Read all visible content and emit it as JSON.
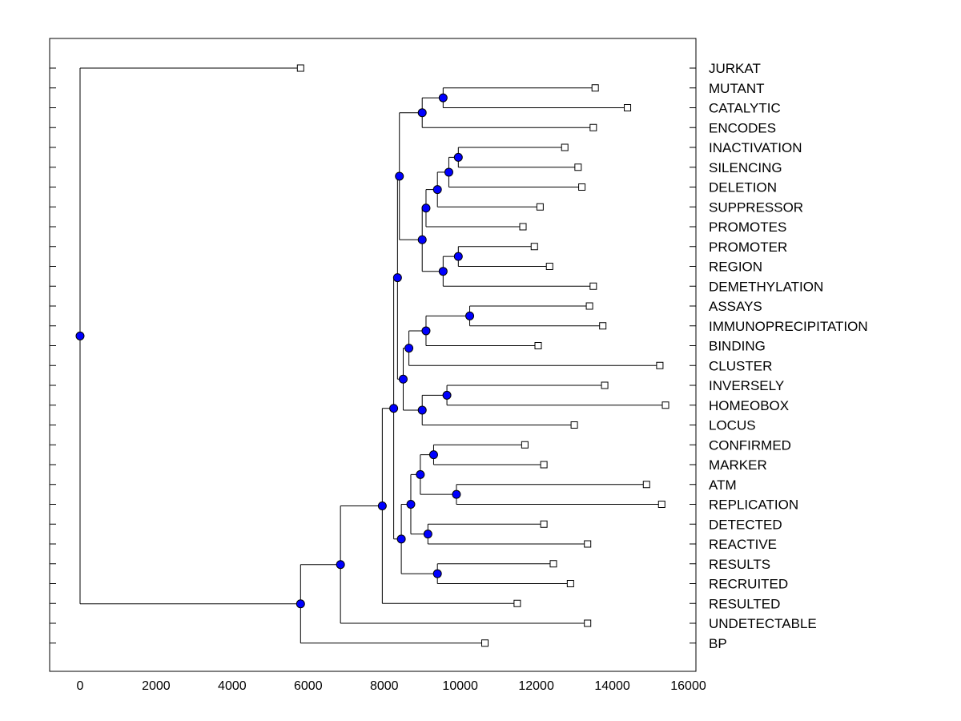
{
  "chart_data": {
    "type": "dendrogram",
    "title": "",
    "xlabel": "",
    "ylabel": "",
    "xlim": [
      -800,
      16200
    ],
    "x_ticks": [
      0,
      2000,
      4000,
      6000,
      8000,
      10000,
      12000,
      14000,
      16000
    ],
    "x_tick_labels": [
      "0",
      "2000",
      "4000",
      "6000",
      "8000",
      "10000",
      "12000",
      "14000",
      "16000"
    ],
    "leaves": [
      {
        "label": "JURKAT",
        "value": 5800
      },
      {
        "label": "MUTANT",
        "value": 13550
      },
      {
        "label": "CATALYTIC",
        "value": 14400
      },
      {
        "label": "ENCODES",
        "value": 13500
      },
      {
        "label": "INACTIVATION",
        "value": 12750
      },
      {
        "label": "SILENCING",
        "value": 13100
      },
      {
        "label": "DELETION",
        "value": 13200
      },
      {
        "label": "SUPPRESSOR",
        "value": 12100
      },
      {
        "label": "PROMOTES",
        "value": 11650
      },
      {
        "label": "PROMOTER",
        "value": 11950
      },
      {
        "label": "REGION",
        "value": 12350
      },
      {
        "label": "DEMETHYLATION",
        "value": 13500
      },
      {
        "label": "ASSAYS",
        "value": 13400
      },
      {
        "label": "IMMUNOPRECIPITATION",
        "value": 13750
      },
      {
        "label": "BINDING",
        "value": 12050
      },
      {
        "label": "CLUSTER",
        "value": 15250
      },
      {
        "label": "INVERSELY",
        "value": 13800
      },
      {
        "label": "HOMEOBOX",
        "value": 15400
      },
      {
        "label": "LOCUS",
        "value": 13000
      },
      {
        "label": "CONFIRMED",
        "value": 11700
      },
      {
        "label": "MARKER",
        "value": 12200
      },
      {
        "label": "ATM",
        "value": 14900
      },
      {
        "label": "REPLICATION",
        "value": 15300
      },
      {
        "label": "DETECTED",
        "value": 12200
      },
      {
        "label": "REACTIVE",
        "value": 13350
      },
      {
        "label": "RESULTS",
        "value": 12450
      },
      {
        "label": "RECRUITED",
        "value": 12900
      },
      {
        "label": "RESULTED",
        "value": 11500
      },
      {
        "label": "UNDETECTABLE",
        "value": 13350
      },
      {
        "label": "BP",
        "value": 10650
      }
    ],
    "nodes": [
      {
        "id": "n1",
        "value": 9550,
        "children": [
          "L1",
          "L2"
        ]
      },
      {
        "id": "n2",
        "value": 9000,
        "children": [
          "n1",
          "L3"
        ]
      },
      {
        "id": "n3",
        "value": 9950,
        "children": [
          "L4",
          "L5"
        ]
      },
      {
        "id": "n4",
        "value": 9700,
        "children": [
          "n3",
          "L6"
        ]
      },
      {
        "id": "n5",
        "value": 9400,
        "children": [
          "n4",
          "L7"
        ]
      },
      {
        "id": "n6",
        "value": 9100,
        "children": [
          "n5",
          "L8"
        ]
      },
      {
        "id": "n7",
        "value": 9950,
        "children": [
          "L9",
          "L10"
        ]
      },
      {
        "id": "n8",
        "value": 9550,
        "children": [
          "n7",
          "L11"
        ]
      },
      {
        "id": "n9",
        "value": 9000,
        "children": [
          "n6",
          "n8"
        ]
      },
      {
        "id": "n10",
        "value": 8400,
        "children": [
          "n2",
          "n9"
        ]
      },
      {
        "id": "n11",
        "value": 10250,
        "children": [
          "L12",
          "L13"
        ]
      },
      {
        "id": "n12",
        "value": 9100,
        "children": [
          "n11",
          "L14"
        ]
      },
      {
        "id": "n13",
        "value": 8650,
        "children": [
          "n12",
          "L15"
        ]
      },
      {
        "id": "n14",
        "value": 9650,
        "children": [
          "L16",
          "L17"
        ]
      },
      {
        "id": "n15",
        "value": 9000,
        "children": [
          "n14",
          "L18"
        ]
      },
      {
        "id": "n16",
        "value": 8500,
        "children": [
          "n13",
          "n15"
        ]
      },
      {
        "id": "n17",
        "value": 8350,
        "children": [
          "n10",
          "n16"
        ]
      },
      {
        "id": "n18",
        "value": 9300,
        "children": [
          "L19",
          "L20"
        ]
      },
      {
        "id": "n19",
        "value": 9900,
        "children": [
          "L21",
          "L22"
        ]
      },
      {
        "id": "n20",
        "value": 8950,
        "children": [
          "n18",
          "n19"
        ]
      },
      {
        "id": "n21",
        "value": 9150,
        "children": [
          "L23",
          "L24"
        ]
      },
      {
        "id": "n22",
        "value": 8700,
        "children": [
          "n20",
          "n21"
        ]
      },
      {
        "id": "n23",
        "value": 9400,
        "children": [
          "L25",
          "L26"
        ]
      },
      {
        "id": "n24",
        "value": 8450,
        "children": [
          "n22",
          "n23"
        ]
      },
      {
        "id": "n25",
        "value": 8250,
        "children": [
          "n17",
          "n24"
        ]
      },
      {
        "id": "n26",
        "value": 7950,
        "children": [
          "n25",
          "L27"
        ]
      },
      {
        "id": "n27",
        "value": 6850,
        "children": [
          "n26",
          "L28"
        ]
      },
      {
        "id": "n28",
        "value": 5800,
        "children": [
          "n27",
          "L29"
        ]
      },
      {
        "id": "n29",
        "value": 0,
        "children": [
          "L0",
          "n28"
        ]
      }
    ],
    "colors": {
      "node": "#0000ff",
      "line": "#000000",
      "leaf_marker": "#ffffff"
    }
  }
}
